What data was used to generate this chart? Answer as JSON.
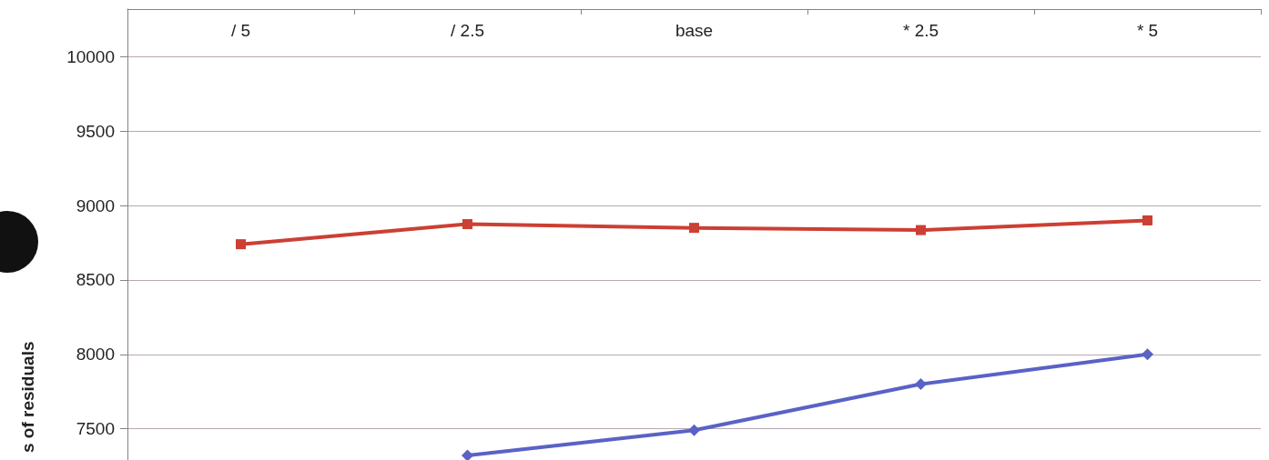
{
  "chart_data": {
    "type": "line",
    "ylabel": "s of residuals",
    "categories": [
      "/ 5",
      "/ 2.5",
      "base",
      "* 2.5",
      "* 5"
    ],
    "series": [
      {
        "color": "#cc3f33",
        "marker": "square",
        "values": [
          8740,
          8875,
          8850,
          8835,
          8900
        ]
      },
      {
        "color": "#5a62c6",
        "marker": "diamond",
        "values": [
          null,
          7320,
          7490,
          7800,
          8000
        ]
      }
    ],
    "ylim": [
      7290,
      10320
    ],
    "yticks": [
      7500,
      8000,
      8500,
      9000,
      9500,
      10000
    ],
    "grid": "y"
  }
}
